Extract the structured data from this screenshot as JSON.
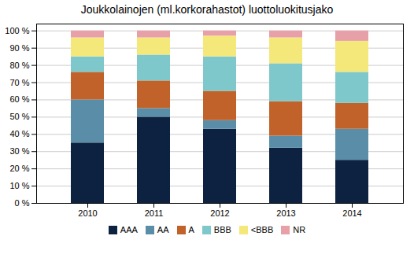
{
  "chart_data": {
    "type": "bar",
    "title": "Joukkolainojen (ml.korkorahastot) luottoluokitusjako",
    "categories": [
      "2010",
      "2011",
      "2012",
      "2013",
      "2014"
    ],
    "series": [
      {
        "name": "AAA",
        "color": "#0d2240",
        "values": [
          35,
          50,
          43,
          32,
          25
        ]
      },
      {
        "name": "AA",
        "color": "#5a8ea8",
        "values": [
          25,
          5,
          5,
          7,
          18
        ]
      },
      {
        "name": "A",
        "color": "#c0622a",
        "values": [
          16,
          16,
          17,
          20,
          15
        ]
      },
      {
        "name": "BBB",
        "color": "#7ec8cc",
        "values": [
          9,
          15,
          20,
          22,
          18
        ]
      },
      {
        "name": "<BBB",
        "color": "#f5e87a",
        "values": [
          11,
          10,
          12,
          15,
          18
        ]
      },
      {
        "name": "NR",
        "color": "#e8a0a8",
        "values": [
          4,
          4,
          3,
          4,
          6
        ]
      }
    ],
    "stacked": true,
    "ylim": [
      0,
      104
    ],
    "yticks": [
      {
        "value": 0,
        "label": "0 %"
      },
      {
        "value": 10,
        "label": "10 %"
      },
      {
        "value": 20,
        "label": "20 %"
      },
      {
        "value": 30,
        "label": "30 %"
      },
      {
        "value": 40,
        "label": "40 %"
      },
      {
        "value": 50,
        "label": "50 %"
      },
      {
        "value": 60,
        "label": "60 %"
      },
      {
        "value": 70,
        "label": "70 %"
      },
      {
        "value": 80,
        "label": "80 %"
      },
      {
        "value": 90,
        "label": "90 %"
      },
      {
        "value": 100,
        "label": "100 %"
      }
    ],
    "grid": true,
    "legend": "bottom"
  }
}
